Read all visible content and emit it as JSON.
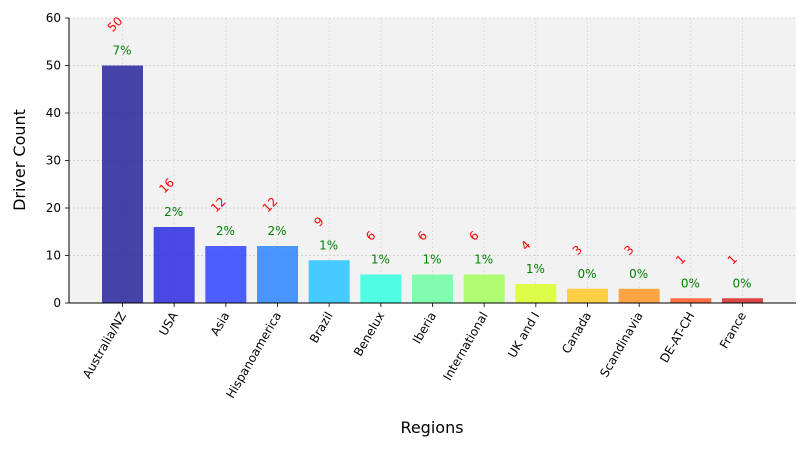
{
  "chart_data": {
    "type": "bar",
    "xlabel": "Regions",
    "ylabel": "Driver Count",
    "ylim": [
      0,
      60
    ],
    "yticks": [
      0,
      10,
      20,
      30,
      40,
      50,
      60
    ],
    "grid": true,
    "categories": [
      "Australia/NZ",
      "USA",
      "Asia",
      "Hispanoamerica",
      "Brazil",
      "Benelux",
      "Iberia",
      "International",
      "UK and I",
      "Canada",
      "Scandinavia",
      "DE-AT-CH",
      "France"
    ],
    "values": [
      50,
      16,
      12,
      12,
      9,
      6,
      6,
      6,
      4,
      3,
      3,
      1,
      1
    ],
    "value_labels": [
      "50",
      "16",
      "12",
      "12",
      "9",
      "6",
      "6",
      "6",
      "4",
      "3",
      "3",
      "1",
      "1"
    ],
    "percent_labels": [
      "7%",
      "2%",
      "2%",
      "2%",
      "1%",
      "1%",
      "1%",
      "1%",
      "1%",
      "0%",
      "0%",
      "0%",
      "0%"
    ],
    "colors": [
      "#27249a",
      "#2a2ae0",
      "#2f45ff",
      "#2b85ff",
      "#29c3ff",
      "#34ffe0",
      "#6effa3",
      "#a3ff5c",
      "#dbff2a",
      "#ffc926",
      "#ff9627",
      "#ff5727",
      "#d92626"
    ],
    "value_label_color": "#ff0000",
    "percent_label_color": "#008000",
    "plot_background": "#f2f2f2"
  }
}
